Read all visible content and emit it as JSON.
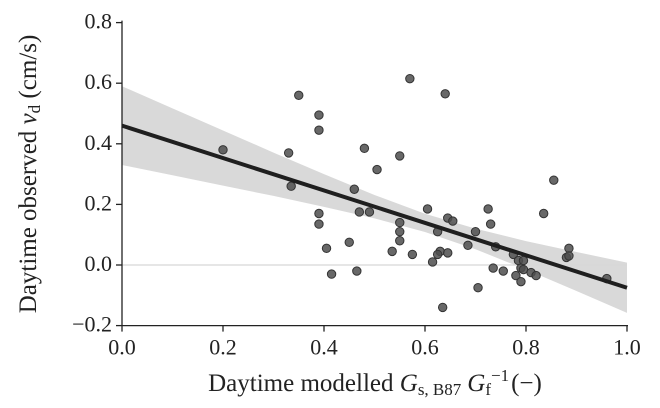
{
  "chart_data": {
    "type": "scatter",
    "xlabel_parts": [
      "Daytime modelled ",
      "G",
      "s, B87",
      "G",
      "f",
      "−1",
      "(−)"
    ],
    "ylabel_parts": [
      "Daytime observed ",
      "v",
      "d",
      " (cm/s)"
    ],
    "xlim": [
      0,
      1.0
    ],
    "ylim": [
      -0.2,
      0.8
    ],
    "xticks": [
      {
        "value": 0,
        "label": "0.0"
      },
      {
        "value": 0.2,
        "label": "0.2"
      },
      {
        "value": 0.4,
        "label": "0.4"
      },
      {
        "value": 0.6,
        "label": "0.6"
      },
      {
        "value": 0.8,
        "label": "0.8"
      },
      {
        "value": 1.0,
        "label": "1.0"
      }
    ],
    "yticks": [
      {
        "value": -0.2,
        "label": "−0.2"
      },
      {
        "value": 0,
        "label": "0.0"
      },
      {
        "value": 0.2,
        "label": "0.2"
      },
      {
        "value": 0.4,
        "label": "0.4"
      },
      {
        "value": 0.6,
        "label": "0.6"
      },
      {
        "value": 0.8,
        "label": "0.8"
      }
    ],
    "hline": 0,
    "color": "#4d4d4d",
    "x": [
      0.2,
      0.33,
      0.335,
      0.35,
      0.39,
      0.39,
      0.39,
      0.39,
      0.405,
      0.415,
      0.45,
      0.46,
      0.465,
      0.47,
      0.48,
      0.49,
      0.505,
      0.535,
      0.55,
      0.55,
      0.55,
      0.55,
      0.57,
      0.575,
      0.605,
      0.615,
      0.625,
      0.63,
      0.625,
      0.64,
      0.645,
      0.645,
      0.655,
      0.635,
      0.685,
      0.7,
      0.705,
      0.725,
      0.73,
      0.735,
      0.74,
      0.755,
      0.775,
      0.78,
      0.785,
      0.79,
      0.79,
      0.795,
      0.795,
      0.81,
      0.82,
      0.835,
      0.855,
      0.88,
      0.885,
      0.885,
      0.96
    ],
    "values": [
      0.38,
      0.37,
      0.26,
      0.56,
      0.495,
      0.445,
      0.17,
      0.135,
      0.055,
      -0.03,
      0.075,
      0.25,
      -0.02,
      0.175,
      0.385,
      0.175,
      0.315,
      0.045,
      0.36,
      0.14,
      0.11,
      0.08,
      0.615,
      0.035,
      0.185,
      0.01,
      0.11,
      0.045,
      0.035,
      0.565,
      0.155,
      0.04,
      0.145,
      -0.14,
      0.065,
      0.11,
      -0.075,
      0.185,
      0.135,
      -0.01,
      0.06,
      -0.02,
      0.035,
      -0.035,
      0.015,
      -0.01,
      -0.055,
      0.015,
      -0.015,
      -0.025,
      -0.035,
      0.17,
      0.28,
      0.025,
      0.055,
      0.03,
      -0.045
    ],
    "fit": {
      "color": "#1f1f1f",
      "x": [
        0,
        1.0
      ],
      "y": [
        0.46,
        -0.075
      ]
    },
    "band": {
      "color": "#d9d9d9",
      "x": [
        0,
        0.1,
        0.2,
        0.3,
        0.4,
        0.5,
        0.6,
        0.7,
        0.8,
        0.9,
        1.0
      ],
      "upper": [
        0.59,
        0.517,
        0.444,
        0.371,
        0.3,
        0.231,
        0.169,
        0.12,
        0.079,
        0.043,
        0.008
      ],
      "lower": [
        0.33,
        0.296,
        0.262,
        0.228,
        0.192,
        0.154,
        0.109,
        0.052,
        -0.015,
        -0.086,
        -0.158
      ]
    }
  }
}
